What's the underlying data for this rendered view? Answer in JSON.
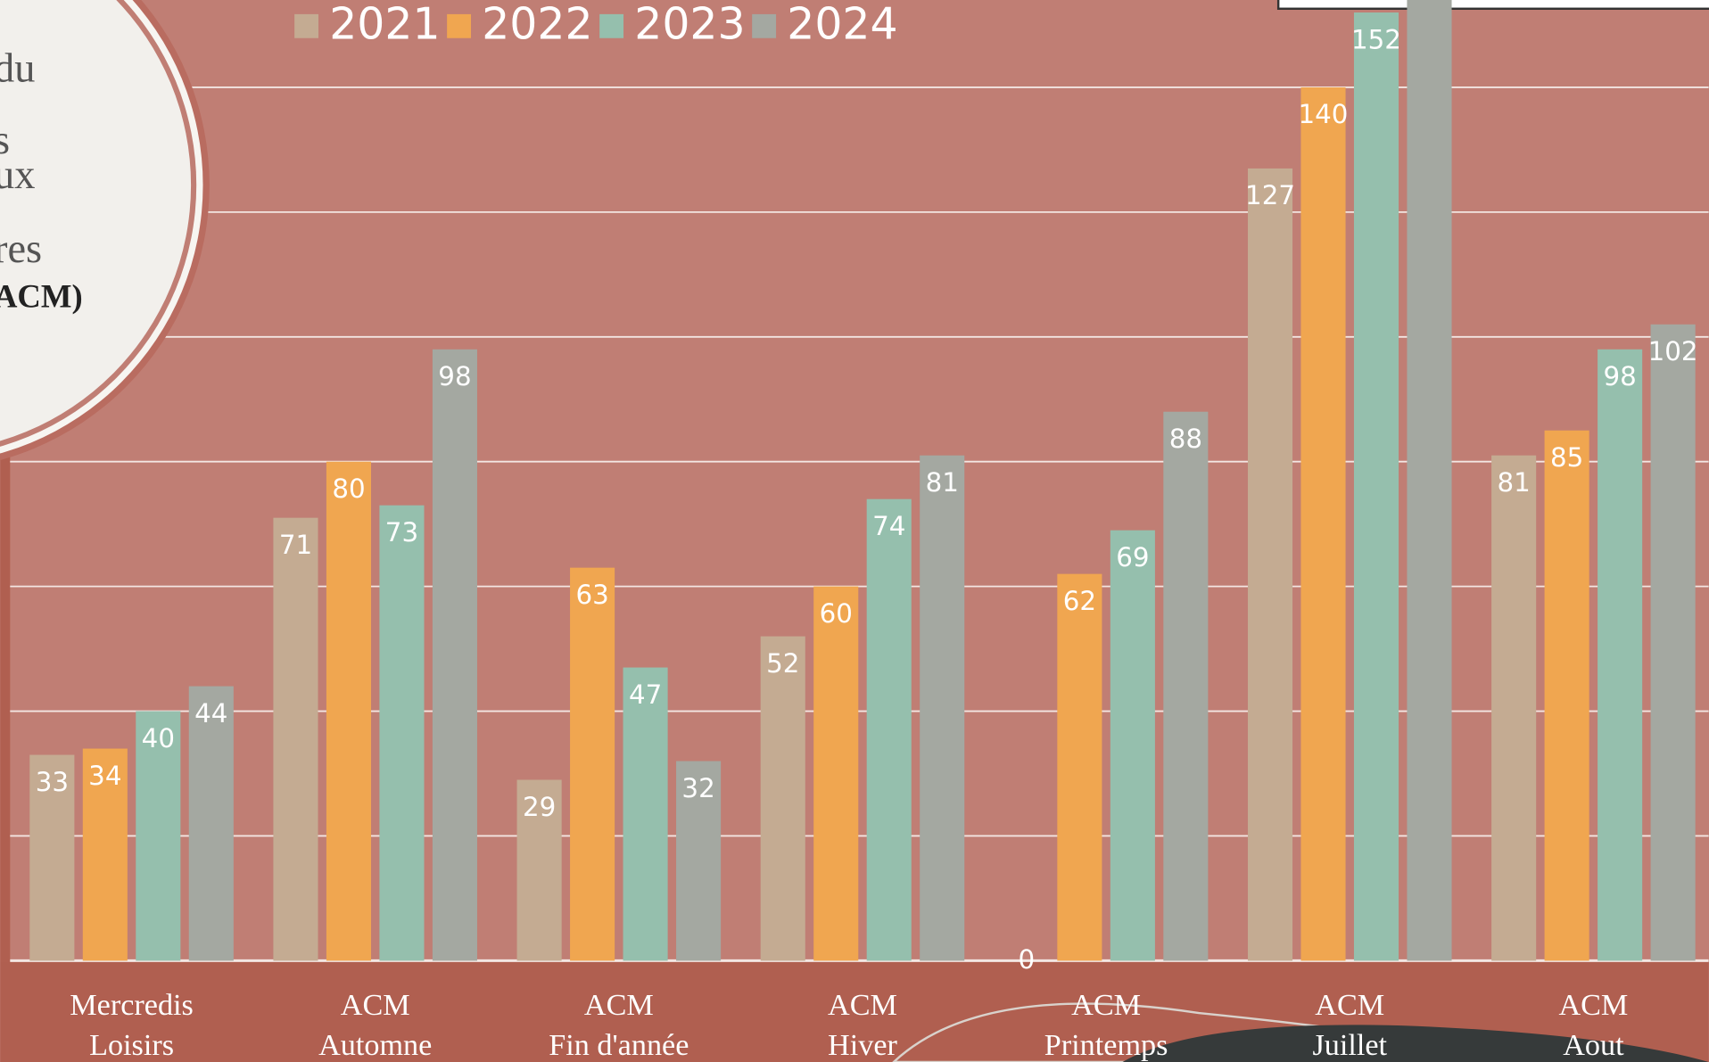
{
  "chart_data": {
    "type": "bar",
    "categories": [
      [
        "Mercredis",
        "Loisirs"
      ],
      [
        "ACM",
        "Automne"
      ],
      [
        "ACM",
        "Fin d'année"
      ],
      [
        "ACM",
        "Hiver"
      ],
      [
        "ACM",
        "Printemps"
      ],
      [
        "ACM",
        "Juillet"
      ],
      [
        "ACM",
        "Aout"
      ]
    ],
    "series": [
      {
        "name": "2021",
        "color": "#c4ab92",
        "values": [
          33,
          71,
          29,
          52,
          0,
          127,
          81
        ]
      },
      {
        "name": "2022",
        "color": "#f0a650",
        "values": [
          34,
          80,
          63,
          60,
          62,
          140,
          85
        ]
      },
      {
        "name": "2023",
        "color": "#95bfad",
        "values": [
          40,
          73,
          47,
          74,
          69,
          152,
          98
        ]
      },
      {
        "name": "2024",
        "color": "#a4a8a1",
        "values": [
          44,
          98,
          32,
          81,
          88,
          160,
          102
        ]
      }
    ],
    "ylim": [
      0,
      154
    ],
    "yticks": [
      0,
      20,
      40,
      60,
      80,
      100,
      120,
      140
    ],
    "grid": true,
    "legend": "top",
    "side_text": [
      "du",
      "s",
      "ux",
      "res",
      "ACM)"
    ]
  }
}
